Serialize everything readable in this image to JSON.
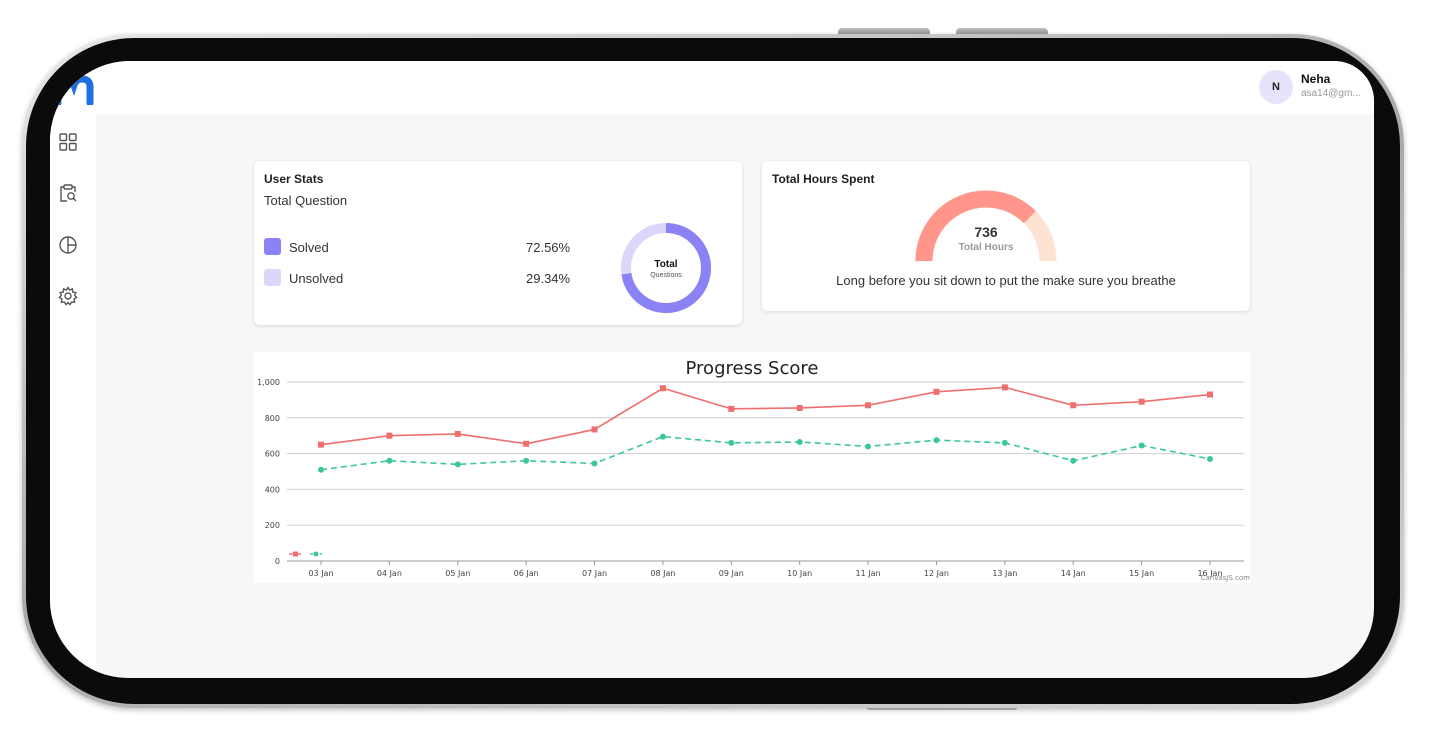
{
  "app": {
    "logo_icon": "brand-m-logo",
    "user": {
      "initial": "N",
      "name": "Neha",
      "email": "asa14@gm..."
    }
  },
  "sidebar": {
    "items": [
      {
        "icon": "dashboard-grid-icon"
      },
      {
        "icon": "clipboard-search-icon"
      },
      {
        "icon": "pie-chart-icon"
      },
      {
        "icon": "settings-gear-icon"
      }
    ]
  },
  "user_stats": {
    "title": "User Stats",
    "subtitle": "Total Question",
    "items": [
      {
        "label": "Solved",
        "value": "72.56%",
        "color": "#8b83f5",
        "fraction": 0.7256
      },
      {
        "label": "Unsolved",
        "value": "29.34%",
        "color": "#dad7fa",
        "fraction": 0.2934
      }
    ],
    "donut_title": "Total",
    "donut_subtitle": "Questions"
  },
  "hours": {
    "title": "Total Hours Spent",
    "value": "736",
    "value_label": "Total Hours",
    "quote": "Long before you sit down to put the make sure you breathe",
    "gauge_fraction": 0.75,
    "colors": {
      "primary": "#ff958b",
      "secondary": "#fde3d2"
    }
  },
  "chart_data": {
    "type": "line",
    "title": "Progress Score",
    "categories": [
      "03 Jan",
      "04 Jan",
      "05 Jan",
      "06 Jan",
      "07 Jan",
      "08 Jan",
      "09 Jan",
      "10 Jan",
      "11 Jan",
      "12 Jan",
      "13 Jan",
      "14 Jan",
      "15 Jan",
      "16 Jan"
    ],
    "ylim": [
      0,
      1000
    ],
    "yticks": [
      0,
      200,
      400,
      600,
      800,
      1000
    ],
    "ytick_labels": [
      "0",
      "200",
      "400",
      "600",
      "800",
      "1,000"
    ],
    "series": [
      {
        "color": "#ef6e6e",
        "marker": "square",
        "dashed": false,
        "values": [
          650,
          700,
          710,
          655,
          735,
          965,
          850,
          855,
          870,
          945,
          970,
          870,
          890,
          930
        ]
      },
      {
        "color": "#3cc797",
        "marker": "circle",
        "dashed": true,
        "values": [
          510,
          560,
          540,
          560,
          545,
          695,
          660,
          665,
          640,
          675,
          660,
          560,
          645,
          570
        ]
      }
    ],
    "grid": true,
    "legend": "bottom-left",
    "credit": "CanvasJS.com"
  }
}
